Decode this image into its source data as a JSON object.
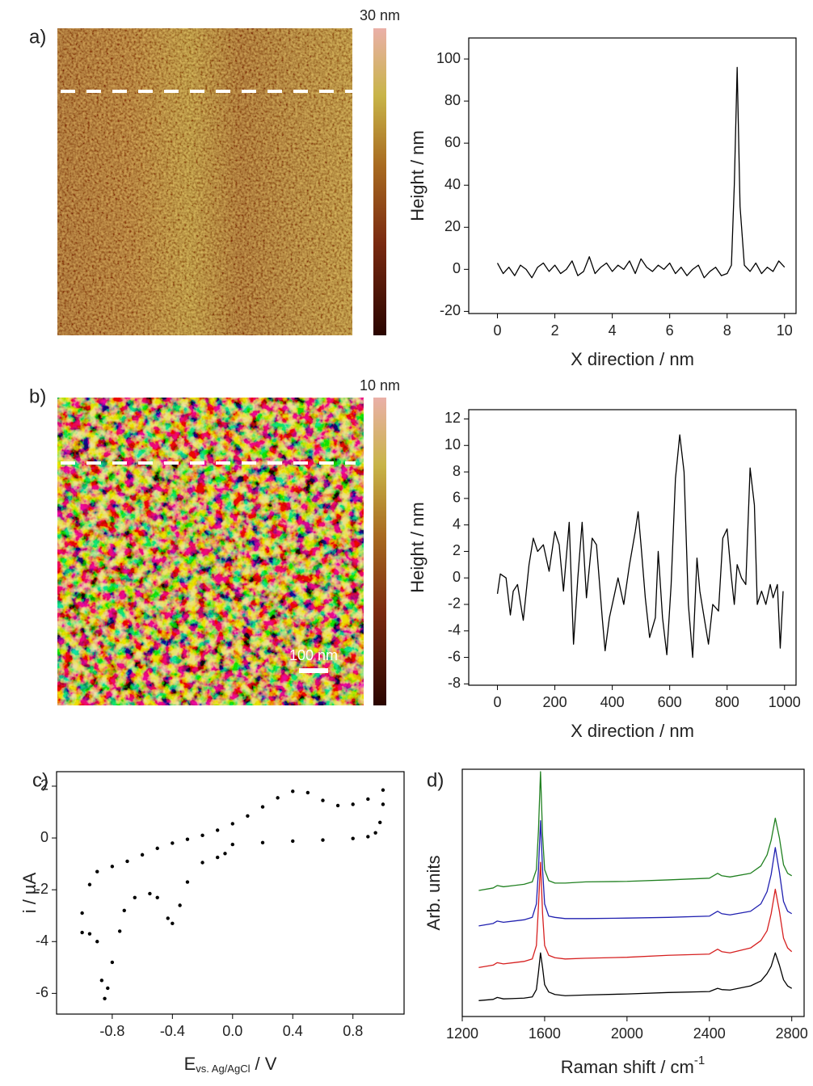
{
  "images": [
    {
      "panel": "a)",
      "colorbar_label": "30 nm"
    },
    {
      "panel": "b)",
      "colorbar_label": "10 nm",
      "scale_bar": "100 nm"
    }
  ],
  "chart_data": [
    {
      "type": "line",
      "xlabel": "X direction / nm",
      "ylabel": "Height / nm",
      "x": [
        0,
        0.2,
        0.4,
        0.6,
        0.8,
        1,
        1.2,
        1.4,
        1.6,
        1.8,
        2,
        2.2,
        2.4,
        2.6,
        2.8,
        3,
        3.2,
        3.4,
        3.6,
        3.8,
        4,
        4.2,
        4.4,
        4.6,
        4.8,
        5,
        5.2,
        5.4,
        5.6,
        5.8,
        6,
        6.2,
        6.4,
        6.6,
        6.8,
        7,
        7.2,
        7.4,
        7.6,
        7.8,
        8,
        8.15,
        8.25,
        8.35,
        8.45,
        8.6,
        8.8,
        9,
        9.2,
        9.4,
        9.6,
        9.8,
        10
      ],
      "series": [
        {
          "color": "#000000",
          "values": [
            3,
            -2,
            1,
            -3,
            2,
            0,
            -4,
            1,
            3,
            -1,
            2,
            -2,
            0,
            4,
            -3,
            -1,
            6,
            -2,
            1,
            3,
            -1,
            2,
            0,
            4,
            -2,
            5,
            1,
            -1,
            2,
            0,
            3,
            -2,
            1,
            -3,
            0,
            2,
            -4,
            -1,
            1,
            -3,
            -2,
            2,
            40,
            96,
            30,
            2,
            -1,
            3,
            -2,
            1,
            -1,
            4,
            1
          ]
        }
      ],
      "xlim": [
        -1,
        10.4
      ],
      "ylim": [
        -21,
        110
      ],
      "xticks": [
        0,
        2,
        4,
        6,
        8,
        10
      ],
      "yticks": [
        -20,
        0,
        20,
        40,
        60,
        80,
        100
      ]
    },
    {
      "type": "line",
      "xlabel": "X direction / nm",
      "ylabel": "Height / nm",
      "x": [
        0,
        10,
        30,
        45,
        55,
        70,
        90,
        110,
        125,
        140,
        160,
        180,
        200,
        215,
        230,
        250,
        265,
        280,
        295,
        310,
        330,
        345,
        365,
        375,
        390,
        410,
        420,
        440,
        460,
        480,
        490,
        500,
        515,
        530,
        550,
        560,
        575,
        590,
        605,
        620,
        635,
        650,
        665,
        680,
        695,
        705,
        720,
        735,
        750,
        770,
        785,
        800,
        815,
        825,
        835,
        850,
        865,
        880,
        895,
        905,
        920,
        935,
        950,
        960,
        975,
        985,
        995
      ],
      "series": [
        {
          "color": "#000000",
          "values": [
            -1.2,
            0.3,
            0,
            -2.8,
            -1,
            -0.5,
            -3.2,
            1,
            3,
            2,
            2.5,
            0.5,
            3.5,
            2.5,
            -1,
            4.2,
            -5,
            0,
            4.2,
            -1.5,
            3,
            2.5,
            -3,
            -5.5,
            -3,
            -1,
            0,
            -2,
            1,
            3.5,
            5,
            2.5,
            -1.5,
            -4.5,
            -3,
            2,
            -3,
            -5.8,
            -0.5,
            7.5,
            10.8,
            8,
            -2,
            -6,
            1.5,
            -1,
            -3,
            -5,
            -2,
            -2.5,
            3,
            3.7,
            0,
            -2,
            1,
            0,
            -0.5,
            8.3,
            5.5,
            -2,
            -1,
            -2,
            -0.5,
            -1.5,
            -0.5,
            -5.3,
            -1
          ]
        }
      ],
      "xlim": [
        -100,
        1040
      ],
      "ylim": [
        -8.1,
        12.7
      ],
      "xticks": [
        0,
        200,
        400,
        600,
        800,
        1000
      ],
      "yticks": [
        -8,
        -6,
        -4,
        -2,
        0,
        2,
        4,
        6,
        8,
        10,
        12
      ]
    },
    {
      "type": "scatter",
      "panel": "c)",
      "xlabel": [
        "E",
        "vs. Ag/AgCl",
        "/ V"
      ],
      "ylabel": "i / µA",
      "series": [
        {
          "color": "#000000",
          "x": [
            -1,
            -0.95,
            -0.9,
            -0.8,
            -0.7,
            -0.6,
            -0.5,
            -0.4,
            -0.3,
            -0.2,
            -0.1,
            0,
            0.1,
            0.2,
            0.3,
            0.4,
            0.5,
            0.6,
            0.7,
            0.8,
            0.9,
            1
          ],
          "values": [
            -2.9,
            -1.8,
            -1.3,
            -1.1,
            -0.9,
            -0.65,
            -0.4,
            -0.2,
            -0.05,
            0.1,
            0.3,
            0.55,
            0.85,
            1.2,
            1.55,
            1.8,
            1.75,
            1.45,
            1.25,
            1.3,
            1.5,
            1.85
          ]
        },
        {
          "color": "#000000",
          "x": [
            1,
            0.98,
            0.95,
            0.9,
            0.8,
            0.6,
            0.4,
            0.2,
            0,
            -0.05,
            -0.1,
            -0.2,
            -0.3,
            -0.35,
            -0.4,
            -0.43,
            -0.5,
            -0.55,
            -0.65,
            -0.72,
            -0.75,
            -0.8,
            -0.83,
            -0.85,
            -0.87,
            -0.9,
            -0.95,
            -1
          ],
          "values": [
            1.3,
            0.6,
            0.2,
            0.05,
            -0.02,
            -0.08,
            -0.12,
            -0.18,
            -0.25,
            -0.6,
            -0.75,
            -0.95,
            -1.7,
            -2.6,
            -3.3,
            -3.1,
            -2.3,
            -2.15,
            -2.3,
            -2.8,
            -3.6,
            -4.8,
            -5.8,
            -6.2,
            -5.5,
            -4,
            -3.7,
            -3.65
          ]
        }
      ],
      "xlim": [
        -1.17,
        1.14
      ],
      "ylim": [
        -6.8,
        2.56
      ],
      "xticks": [
        -0.8,
        -0.4,
        {
          "value": 0,
          "label": "0.0"
        },
        0.4,
        0.8
      ],
      "yticks": [
        -6,
        -4,
        -2,
        0,
        2
      ]
    },
    {
      "type": "line",
      "panel": "d)",
      "xlabel": [
        "Raman shift / cm",
        "-1"
      ],
      "ylabel": "Arb. units",
      "x": [
        1280,
        1350,
        1370,
        1400,
        1500,
        1540,
        1560,
        1570,
        1580,
        1590,
        1600,
        1620,
        1650,
        1700,
        1800,
        2000,
        2200,
        2400,
        2440,
        2460,
        2500,
        2600,
        2650,
        2680,
        2700,
        2720,
        2740,
        2760,
        2780,
        2800
      ],
      "series": [
        {
          "color": "#000000",
          "values": [
            0.65,
            0.7,
            0.78,
            0.72,
            0.75,
            0.8,
            1.1,
            1.8,
            2.6,
            2.0,
            1.3,
            1.0,
            0.9,
            0.85,
            0.88,
            0.92,
            0.98,
            1.02,
            1.15,
            1.1,
            1.08,
            1.25,
            1.45,
            1.75,
            2.05,
            2.6,
            2.1,
            1.5,
            1.25,
            1.15
          ]
        },
        {
          "color": "#d62020",
          "values": [
            2.0,
            2.1,
            2.2,
            2.15,
            2.25,
            2.35,
            2.9,
            4.5,
            6.3,
            4.2,
            2.9,
            2.5,
            2.4,
            2.35,
            2.38,
            2.42,
            2.5,
            2.55,
            2.75,
            2.65,
            2.6,
            2.8,
            3.1,
            3.5,
            4.2,
            5.2,
            4.3,
            3.2,
            2.8,
            2.65
          ]
        },
        {
          "color": "#2020b0",
          "values": [
            3.7,
            3.8,
            3.9,
            3.85,
            3.95,
            4.05,
            4.6,
            6.0,
            8.0,
            6.0,
            4.6,
            4.1,
            4.05,
            4.0,
            4.0,
            4.02,
            4.05,
            4.1,
            4.3,
            4.2,
            4.15,
            4.3,
            4.6,
            5.1,
            5.8,
            6.9,
            5.9,
            4.7,
            4.3,
            4.2
          ]
        },
        {
          "color": "#208020",
          "values": [
            5.15,
            5.25,
            5.35,
            5.3,
            5.4,
            5.5,
            6.0,
            7.6,
            10.0,
            7.4,
            6.0,
            5.55,
            5.45,
            5.45,
            5.5,
            5.52,
            5.58,
            5.65,
            5.85,
            5.75,
            5.7,
            5.85,
            6.15,
            6.6,
            7.2,
            8.1,
            7.3,
            6.2,
            5.85,
            5.75
          ]
        }
      ],
      "xlim": [
        1200,
        2860
      ],
      "ylim": [
        0,
        10.1
      ],
      "xticks": [
        1200,
        1600,
        2000,
        2400,
        2800
      ]
    }
  ]
}
